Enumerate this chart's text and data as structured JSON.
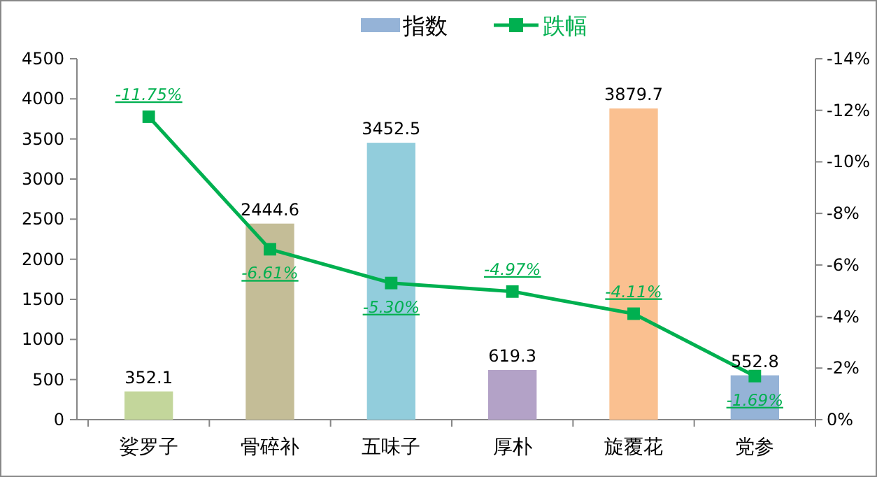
{
  "chart_data": {
    "type": "bar",
    "categories": [
      "娑罗子",
      "骨碎补",
      "五味子",
      "厚朴",
      "旋覆花",
      "党参"
    ],
    "series": [
      {
        "name": "指数",
        "color": "#95b3d7",
        "colors": [
          "#c3d69b",
          "#c4bd97",
          "#92cddc",
          "#b3a2c7",
          "#fac090",
          "#95b3d7"
        ],
        "values": [
          352.1,
          2444.6,
          3452.5,
          619.3,
          3879.7,
          552.8
        ],
        "value_labels": [
          "352.1",
          "2444.6",
          "3452.5",
          "619.3",
          "3879.7",
          "552.8"
        ]
      },
      {
        "name": "跌幅",
        "type": "line",
        "axis": "y2",
        "color": "#00b050",
        "values": [
          -11.75,
          -6.61,
          -5.3,
          -4.97,
          -4.11,
          -1.69
        ],
        "value_labels": [
          "-11.75%",
          "-6.61%",
          "-5.30%",
          "-4.97%",
          "-4.11%",
          "-1.69%"
        ]
      }
    ],
    "ylim": [
      0,
      4500
    ],
    "yticks": [
      0,
      500,
      1000,
      1500,
      2000,
      2500,
      3000,
      3500,
      4000,
      4500
    ],
    "y2lim": [
      0,
      -14
    ],
    "y2ticks": [
      {
        "value": 0,
        "label": "0%"
      },
      {
        "value": -2,
        "label": "-2%"
      },
      {
        "value": -4,
        "label": "-4%"
      },
      {
        "value": -6,
        "label": "-6%"
      },
      {
        "value": -8,
        "label": "-8%"
      },
      {
        "value": -10,
        "label": "-10%"
      },
      {
        "value": -12,
        "label": "-12%"
      },
      {
        "value": -14,
        "label": "-14%"
      }
    ],
    "legend": "top",
    "marker": "square",
    "line_style": "solid",
    "grid": false
  }
}
